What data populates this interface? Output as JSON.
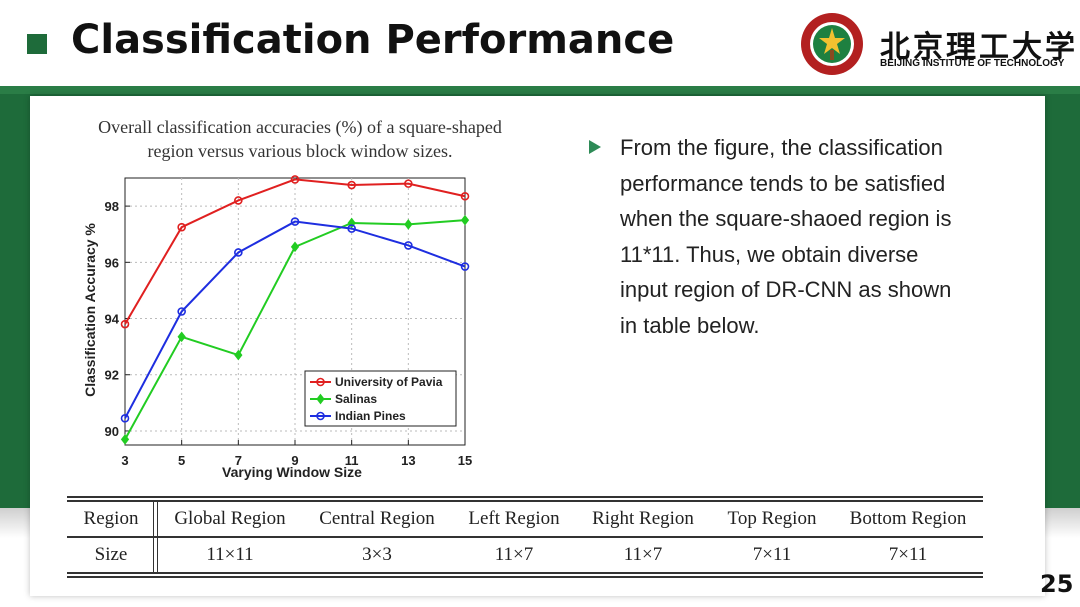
{
  "slide": {
    "title": "Classification Performance",
    "page_number": "25",
    "logo": {
      "cn": "北京理工大学",
      "en": "BEIJING INSTITUTE OF TECHNOLOGY"
    },
    "bullets": [
      {
        "lines": [
          "From the figure, the classification",
          "performance tends to be satisfied",
          "when the square-shaoed region is",
          "11*11. Thus, we obtain diverse",
          "input region of DR-CNN as shown",
          "in table below."
        ]
      }
    ]
  },
  "chart_title_lines": [
    "Overall classification accuracies (%) of a square-shaped",
    "region versus various block window sizes."
  ],
  "chart_data": {
    "type": "line",
    "x": [
      3,
      5,
      7,
      9,
      11,
      13,
      15
    ],
    "xlabel": "Varying Window Size",
    "ylabel": "Classification Accuracy %",
    "xlim": [
      3,
      15
    ],
    "ylim": [
      89.5,
      99
    ],
    "yticks": [
      90,
      92,
      94,
      96,
      98
    ],
    "xticks": [
      3,
      5,
      7,
      9,
      11,
      13,
      15
    ],
    "grid": true,
    "legend_position": "bottom-right",
    "series": [
      {
        "name": "University of Pavia",
        "color": "#e02020",
        "marker": "circle",
        "values": [
          93.8,
          97.25,
          98.2,
          98.95,
          98.75,
          98.8,
          98.35
        ]
      },
      {
        "name": "Salinas",
        "color": "#22cc22",
        "marker": "diamond",
        "values": [
          89.7,
          93.35,
          92.7,
          96.55,
          97.4,
          97.35,
          97.5
        ]
      },
      {
        "name": "Indian Pines",
        "color": "#1e2ee0",
        "marker": "circle",
        "values": [
          90.45,
          94.25,
          96.35,
          97.45,
          97.2,
          96.6,
          95.85
        ]
      }
    ]
  },
  "table": {
    "headers": [
      "Region",
      "Global Region",
      "Central Region",
      "Left Region",
      "Right Region",
      "Top Region",
      "Bottom Region"
    ],
    "row": [
      "Size",
      "11×11",
      "3×3",
      "11×7",
      "11×7",
      "7×11",
      "7×11"
    ]
  }
}
